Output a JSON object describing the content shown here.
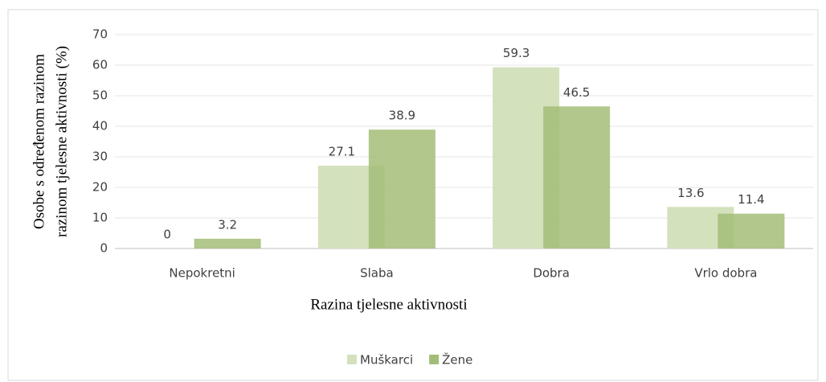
{
  "chart_data": {
    "type": "bar",
    "ylabel": [
      "Osobe s određenom razinom",
      "razinom tjelesne aktivnosti (%)"
    ],
    "xlabel": "Razina tjelesne aktivnosti",
    "categories": [
      "Nepokretni",
      "Slaba",
      "Dobra",
      "Vrlo dobra"
    ],
    "series": [
      {
        "name": "Muškarci",
        "color": "#d4e1bd",
        "values": [
          0,
          27.1,
          59.3,
          13.6
        ]
      },
      {
        "name": "Žene",
        "color": "#a3bd78",
        "values": [
          3.2,
          38.9,
          46.5,
          11.4
        ]
      }
    ],
    "ylim": [
      0,
      70
    ],
    "yticks": [
      0,
      10,
      20,
      30,
      40,
      50,
      60,
      70
    ],
    "grid": true,
    "legend": "bottom"
  }
}
